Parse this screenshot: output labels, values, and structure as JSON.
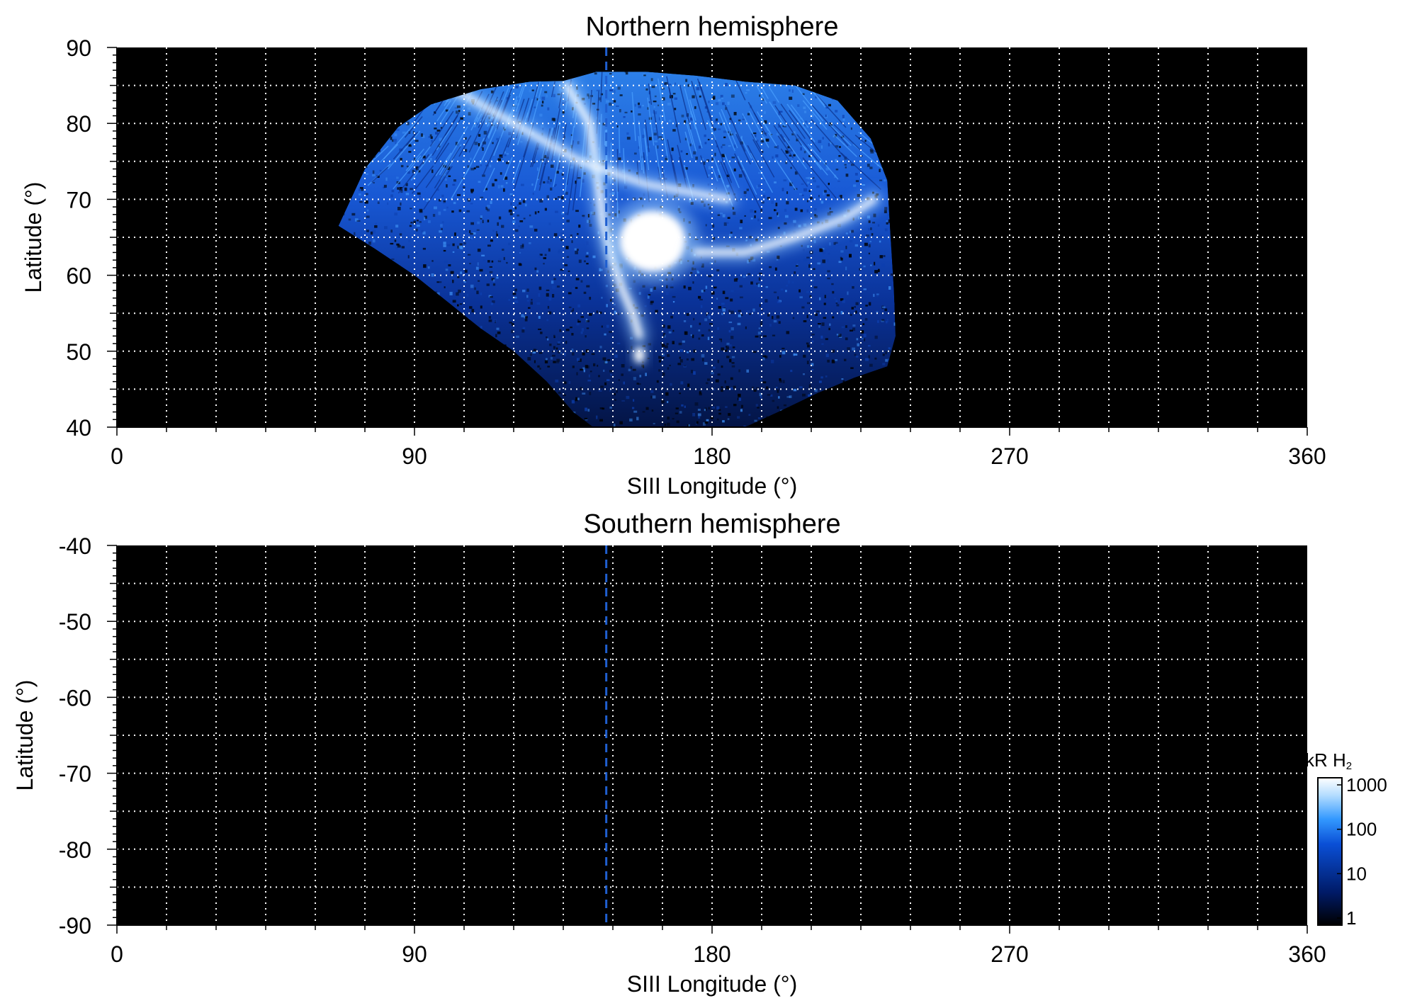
{
  "chart_data": [
    {
      "type": "heatmap",
      "title": "Northern hemisphere",
      "xlabel": "SIII Longitude (°)",
      "ylabel": "Latitude (°)",
      "xlim": [
        0,
        360
      ],
      "ylim": [
        40,
        90
      ],
      "x_ticks": [
        "0",
        "90",
        "180",
        "270",
        "360"
      ],
      "y_ticks": [
        "90",
        "80",
        "70",
        "60",
        "50",
        "40"
      ],
      "y_tick_values": [
        90,
        80,
        70,
        60,
        50,
        40
      ],
      "x_tick_values": [
        0,
        90,
        180,
        270,
        360
      ],
      "grid": true,
      "grid_x_step": 15,
      "grid_y_step": 5,
      "background_color": "#000000",
      "reference_line_longitude": 148,
      "reference_line_lat_range": [
        61,
        90
      ],
      "reference_line_color": "#1f5fd0",
      "data_region": {
        "upper_boundary": [
          [
            67,
            66.5
          ],
          [
            75,
            74
          ],
          [
            85,
            79.5
          ],
          [
            95,
            82.5
          ],
          [
            110,
            84.5
          ],
          [
            125,
            85.5
          ],
          [
            135,
            85.6
          ],
          [
            145,
            86.8
          ],
          [
            160,
            86.8
          ],
          [
            175,
            86.3
          ],
          [
            190,
            85.5
          ],
          [
            205,
            85
          ],
          [
            218,
            83
          ],
          [
            228,
            78
          ],
          [
            233,
            72.5
          ]
        ],
        "lower_boundary": [
          [
            67,
            66.5
          ],
          [
            78,
            63.5
          ],
          [
            90,
            60
          ],
          [
            100,
            56.5
          ],
          [
            110,
            53
          ],
          [
            120,
            50
          ],
          [
            130,
            46
          ],
          [
            138,
            42
          ],
          [
            144,
            40
          ],
          [
            190,
            40
          ],
          [
            200,
            42
          ],
          [
            212,
            44.5
          ],
          [
            223,
            46.5
          ],
          [
            233,
            48
          ]
        ],
        "right_edge": [
          [
            233,
            72.5
          ],
          [
            234,
            65
          ],
          [
            235,
            58
          ],
          [
            235.5,
            52
          ],
          [
            233,
            48
          ]
        ]
      },
      "bright_features": [
        {
          "name": "main oval arc",
          "points": [
            [
              136,
              85
            ],
            [
              143,
              80
            ],
            [
              145,
              74
            ],
            [
              147,
              67
            ],
            [
              150,
              62
            ],
            [
              153,
              58
            ],
            [
              156,
              55
            ],
            [
              158,
              52
            ]
          ],
          "intensity": 1000
        },
        {
          "name": "central bright patch",
          "center": [
            162,
            64.5
          ],
          "radius_lon": 10,
          "radius_lat": 4,
          "intensity": 1000
        },
        {
          "name": "dawn arc",
          "points": [
            [
              175,
              63
            ],
            [
              190,
              63
            ],
            [
              205,
              65
            ],
            [
              220,
              67.5
            ],
            [
              229,
              70
            ]
          ],
          "intensity": 700
        },
        {
          "name": "polar arcs",
          "points": [
            [
              100,
              85
            ],
            [
              120,
              80
            ],
            [
              140,
              75
            ],
            [
              160,
              72
            ],
            [
              185,
              70
            ]
          ],
          "intensity": 500
        },
        {
          "name": "footprint spot",
          "center": [
            158,
            49.5
          ],
          "radius_lon": 1.5,
          "radius_lat": 1,
          "intensity": 1000
        }
      ]
    },
    {
      "type": "heatmap",
      "title": "Southern hemisphere",
      "xlabel": "SIII Longitude (°)",
      "ylabel": "Latitude (°)",
      "xlim": [
        0,
        360
      ],
      "ylim": [
        -90,
        -40
      ],
      "x_ticks": [
        "0",
        "90",
        "180",
        "270",
        "360"
      ],
      "y_ticks": [
        "-40",
        "-50",
        "-60",
        "-70",
        "-80",
        "-90"
      ],
      "y_tick_values": [
        -40,
        -50,
        -60,
        -70,
        -80,
        -90
      ],
      "x_tick_values": [
        0,
        90,
        180,
        270,
        360
      ],
      "grid": true,
      "grid_x_step": 15,
      "grid_y_step": 5,
      "background_color": "#000000",
      "reference_line_longitude": 148,
      "reference_line_lat_range": [
        -90,
        -40
      ],
      "reference_line_color": "#1f5fd0"
    }
  ],
  "colorbar": {
    "title": "kR H",
    "title_subscript": "2",
    "scale": "log",
    "range": [
      1,
      1000
    ],
    "tick_labels": [
      "1000",
      "100",
      "10",
      "1"
    ],
    "tick_values": [
      1000,
      100,
      10,
      1
    ],
    "colors": [
      "#000000",
      "#001a66",
      "#0a4fd6",
      "#3399ff",
      "#b3dcff",
      "#ffffff"
    ]
  }
}
